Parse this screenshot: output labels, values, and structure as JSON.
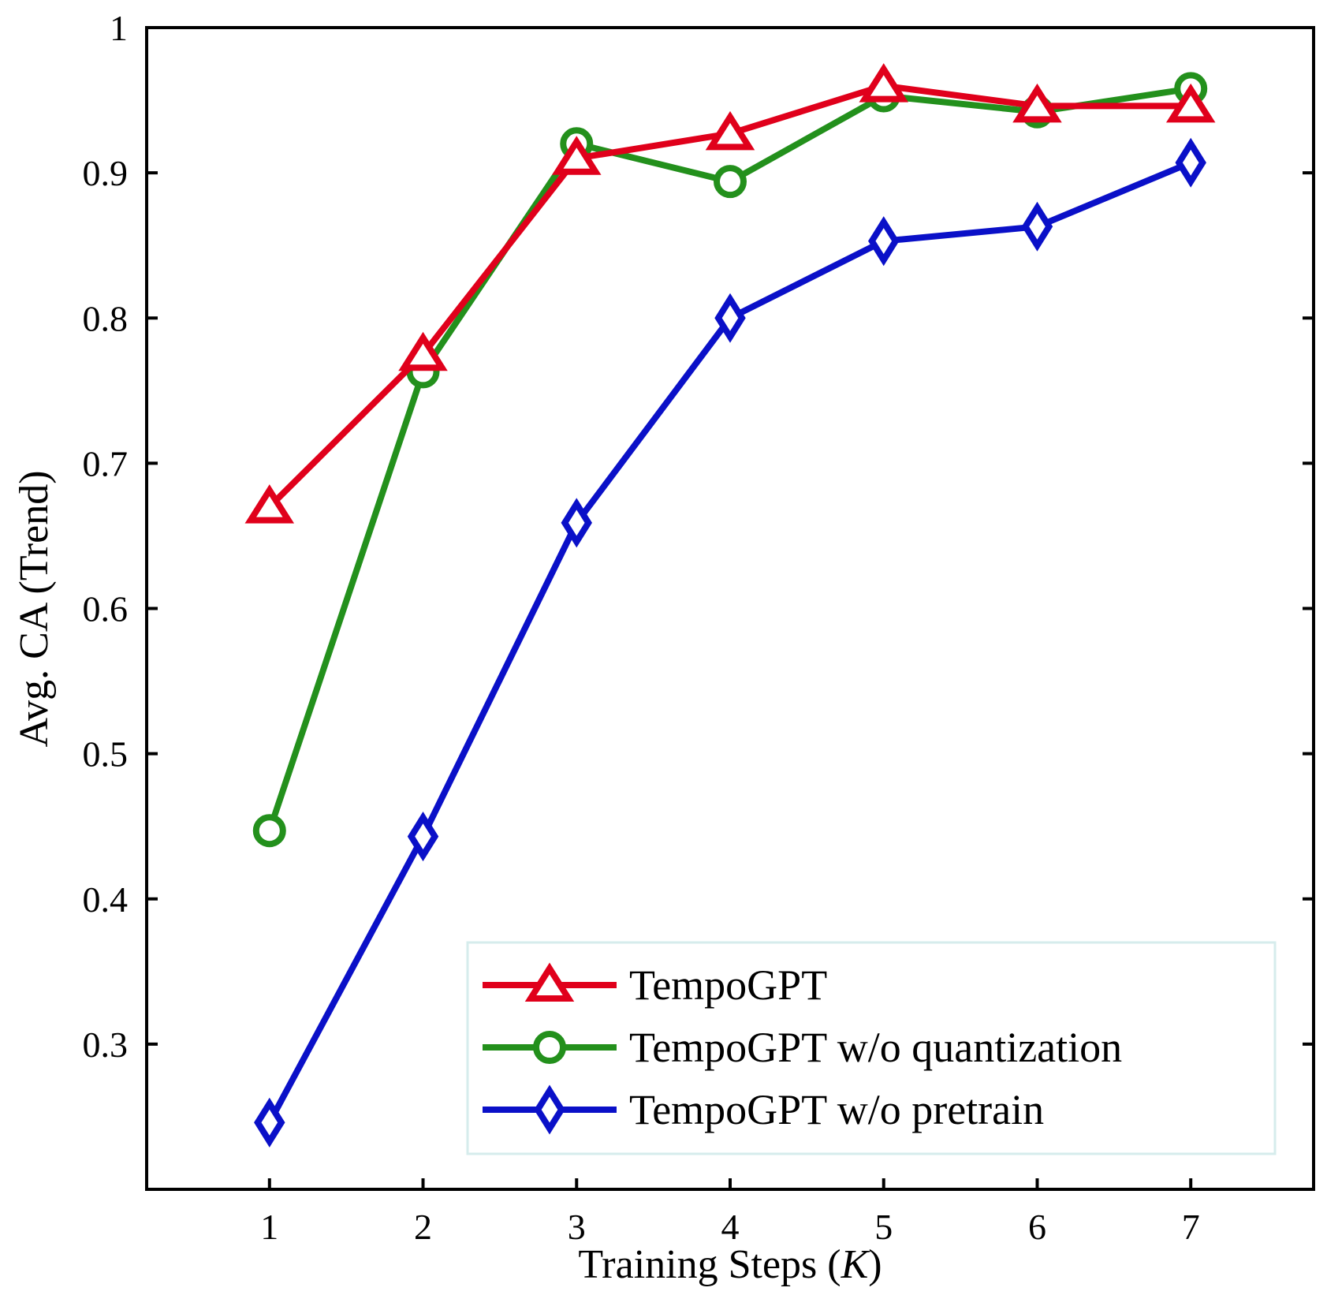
{
  "chart_data": {
    "type": "line",
    "title": "",
    "xlabel": "Training Steps (K)",
    "xlabel_parts": {
      "prefix": "Training Steps (",
      "variable": "K",
      "suffix": ")"
    },
    "ylabel": "Avg. CA (Trend)",
    "x": [
      1,
      2,
      3,
      4,
      5,
      6,
      7
    ],
    "xticks": [
      "1",
      "2",
      "3",
      "4",
      "5",
      "6",
      "7"
    ],
    "xlim": [
      0.2,
      7.8
    ],
    "ylim": [
      0.2,
      1.0
    ],
    "yticks": [
      0.3,
      0.4,
      0.5,
      0.6,
      0.7,
      0.8,
      0.9,
      1.0
    ],
    "ytick_labels": [
      "0.3",
      "0.4",
      "0.5",
      "0.6",
      "0.7",
      "0.8",
      "0.9",
      "1"
    ],
    "grid": false,
    "legend_position": "bottom-right",
    "series": [
      {
        "name": "TempoGPT",
        "color": "#e0001b",
        "marker": "triangle",
        "values": [
          0.67,
          0.775,
          0.91,
          0.927,
          0.96,
          0.946,
          0.946
        ]
      },
      {
        "name": "TempoGPT w/o quantization",
        "color": "#23901c",
        "marker": "circle",
        "values": [
          0.447,
          0.763,
          0.92,
          0.894,
          0.953,
          0.942,
          0.958
        ]
      },
      {
        "name": "TempoGPT w/o pretrain",
        "color": "#0a10c8",
        "marker": "diamond",
        "values": [
          0.246,
          0.443,
          0.659,
          0.8,
          0.853,
          0.863,
          0.907
        ]
      }
    ]
  }
}
